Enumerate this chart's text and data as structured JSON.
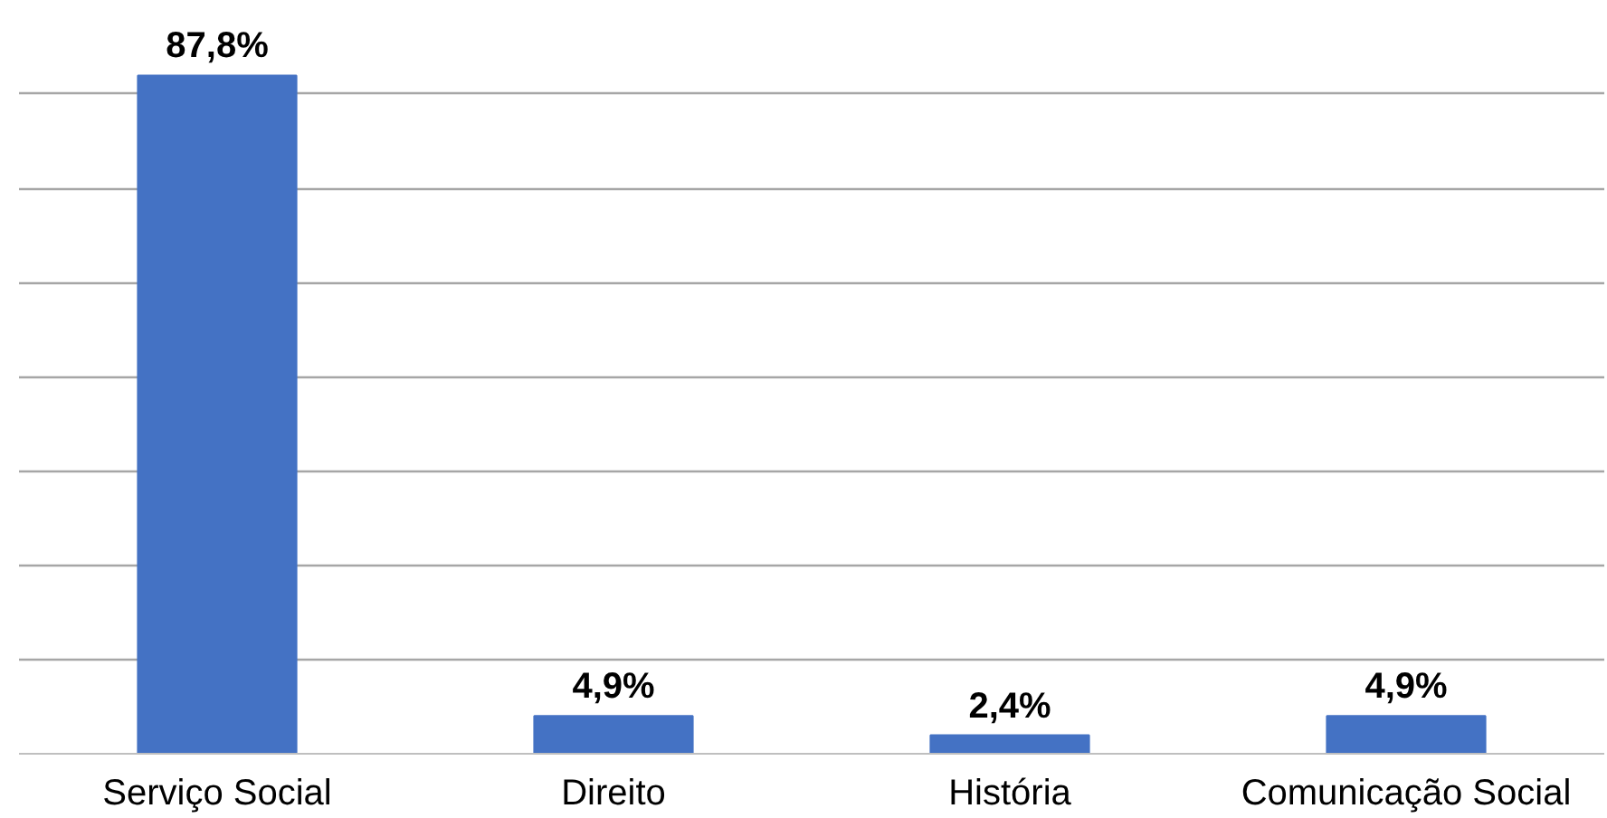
{
  "chart_data": {
    "type": "bar",
    "categories": [
      "Serviço Social",
      "Direito",
      "História",
      "Comunicação Social"
    ],
    "values": [
      87.8,
      4.9,
      2.4,
      4.9
    ],
    "color": "#4472c4",
    "value_labels": [
      "87,8%",
      "4,9%",
      "2,4%",
      "4,9%"
    ],
    "yticks": [
      {
        "value": 12.2,
        "label": null
      },
      {
        "value": 24.4,
        "label": null
      },
      {
        "value": 36.6,
        "label": null
      },
      {
        "value": 48.8,
        "label": null
      },
      {
        "value": 61.0,
        "label": null
      },
      {
        "value": 73.2,
        "label": null
      },
      {
        "value": 85.4,
        "label": null
      }
    ],
    "grid": "y",
    "tick_labels": "x"
  }
}
